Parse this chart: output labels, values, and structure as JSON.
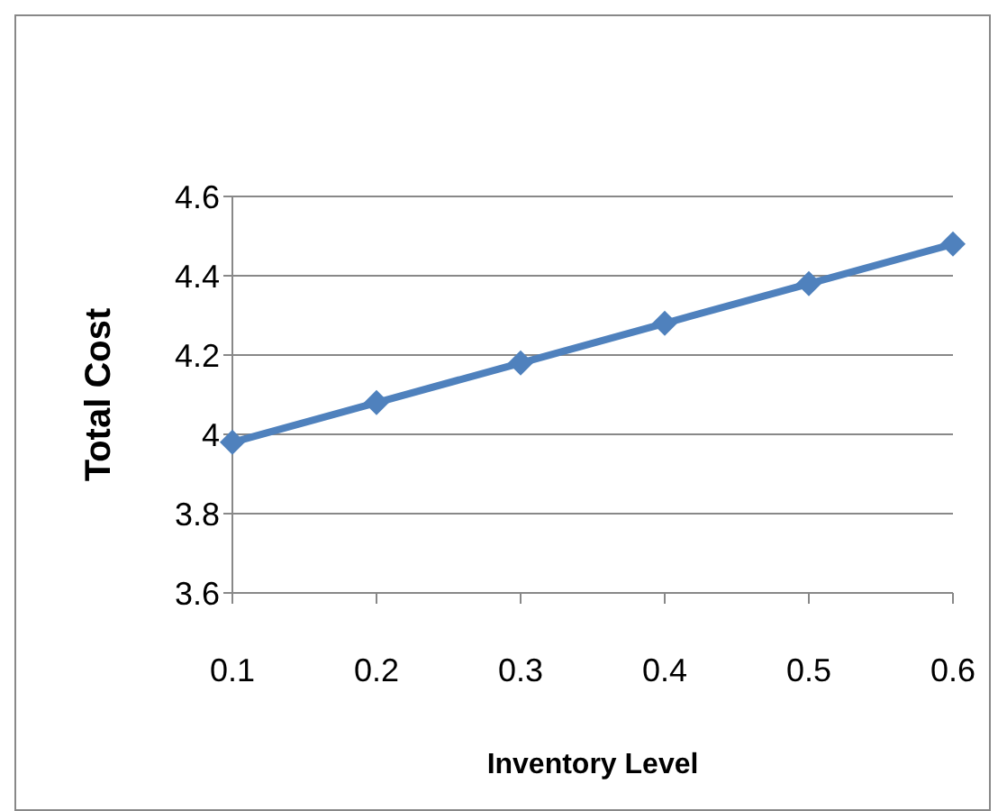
{
  "chart_data": {
    "type": "line",
    "xlabel": "Inventory Level",
    "ylabel": "Total Cost",
    "categories": [
      "0.1",
      "0.2",
      "0.3",
      "0.4",
      "0.5",
      "0.6"
    ],
    "series": [
      {
        "color": "#4f81bd",
        "values": [
          3.98,
          4.08,
          4.18,
          4.28,
          4.38,
          4.48
        ]
      }
    ],
    "ylim": [
      3.6,
      4.6
    ],
    "yticks": [
      3.6,
      3.8,
      4,
      4.2,
      4.4,
      4.6
    ],
    "grid": "y",
    "legend": false,
    "marker": "diamond",
    "line_style": "solid"
  }
}
